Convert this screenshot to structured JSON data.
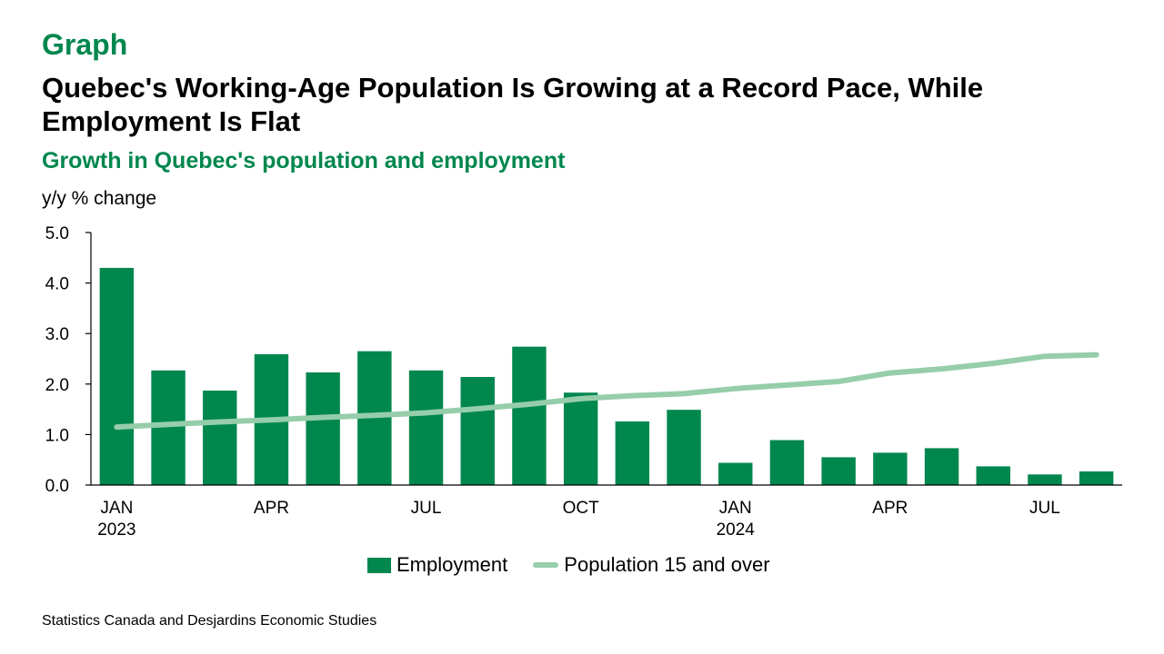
{
  "header": {
    "kicker": "Graph",
    "title": "Quebec's Working-Age Population Is Growing at a Record Pace, While Employment Is Flat",
    "subtitle": "Growth in Quebec's population and employment"
  },
  "source": "Statistics Canada and Desjardins Economic Studies",
  "colors": {
    "accent": "#00874e",
    "population_line": "#96cdaa"
  },
  "chart_data": {
    "type": "bar",
    "ylabel": "y/y % change",
    "ylim": [
      0,
      5
    ],
    "yticks": [
      "5.0",
      "4.0",
      "3.0",
      "2.0",
      "1.0",
      "0.0"
    ],
    "categories": [
      "2023-01",
      "2023-02",
      "2023-03",
      "2023-04",
      "2023-05",
      "2023-06",
      "2023-07",
      "2023-08",
      "2023-09",
      "2023-10",
      "2023-11",
      "2023-12",
      "2024-01",
      "2024-02",
      "2024-03",
      "2024-04",
      "2024-05",
      "2024-06",
      "2024-07",
      "2024-08"
    ],
    "x_tick_labels": [
      {
        "index": 0,
        "month": "JAN",
        "year": "2023"
      },
      {
        "index": 3,
        "month": "APR",
        "year": ""
      },
      {
        "index": 6,
        "month": "JUL",
        "year": ""
      },
      {
        "index": 9,
        "month": "OCT",
        "year": ""
      },
      {
        "index": 12,
        "month": "JAN",
        "year": "2024"
      },
      {
        "index": 15,
        "month": "APR",
        "year": ""
      },
      {
        "index": 18,
        "month": "JUL",
        "year": ""
      }
    ],
    "series": [
      {
        "name": "Employment",
        "type": "bar",
        "values": [
          4.3,
          2.27,
          1.87,
          2.59,
          2.23,
          2.65,
          2.27,
          2.14,
          2.74,
          1.83,
          1.26,
          1.49,
          0.44,
          0.89,
          0.55,
          0.64,
          0.73,
          0.37,
          0.21,
          0.27
        ]
      },
      {
        "name": "Population 15 and over",
        "type": "line",
        "values": [
          1.15,
          1.2,
          1.25,
          1.29,
          1.34,
          1.38,
          1.43,
          1.51,
          1.6,
          1.71,
          1.77,
          1.81,
          1.91,
          1.98,
          2.05,
          2.22,
          2.3,
          2.41,
          2.55,
          2.58
        ]
      }
    ],
    "legend": "bottom-center",
    "grid": false
  }
}
